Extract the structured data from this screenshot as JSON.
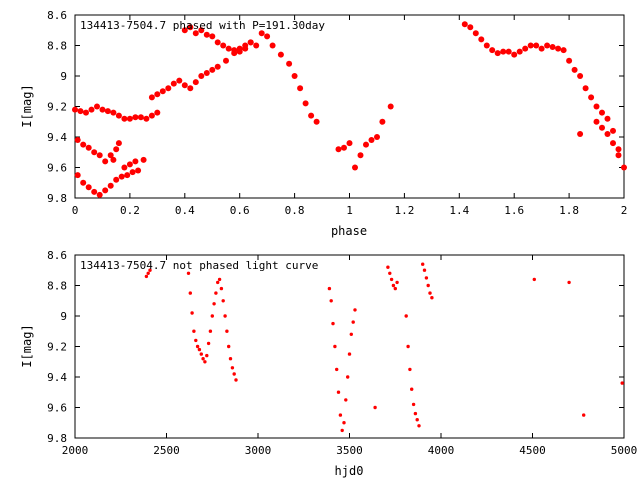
{
  "chart_data": [
    {
      "type": "scatter",
      "title": "134413-7504.7 phased with P=191.30day",
      "xlabel": "phase",
      "ylabel": "I[mag]",
      "xlim": [
        0,
        2
      ],
      "ylim": [
        9.8,
        8.6
      ],
      "y_inverted": true,
      "grid": false,
      "xticks": [
        "0",
        "0.2",
        "0.4",
        "0.6",
        "0.8",
        "1",
        "1.2",
        "1.4",
        "1.6",
        "1.8",
        "2"
      ],
      "yticks": [
        "8.6",
        "8.8",
        "9",
        "9.2",
        "9.4",
        "9.6",
        "9.8"
      ],
      "marker_color": "#ff0000",
      "marker_size": "large",
      "points": [
        [
          0.0,
          9.22
        ],
        [
          0.02,
          9.23
        ],
        [
          0.04,
          9.24
        ],
        [
          0.06,
          9.22
        ],
        [
          0.08,
          9.2
        ],
        [
          0.1,
          9.22
        ],
        [
          0.12,
          9.23
        ],
        [
          0.14,
          9.24
        ],
        [
          0.16,
          9.26
        ],
        [
          0.18,
          9.28
        ],
        [
          0.2,
          9.28
        ],
        [
          0.22,
          9.27
        ],
        [
          0.24,
          9.27
        ],
        [
          0.26,
          9.28
        ],
        [
          0.28,
          9.26
        ],
        [
          0.3,
          9.24
        ],
        [
          0.01,
          9.42
        ],
        [
          0.03,
          9.45
        ],
        [
          0.05,
          9.47
        ],
        [
          0.07,
          9.5
        ],
        [
          0.09,
          9.52
        ],
        [
          0.11,
          9.56
        ],
        [
          0.13,
          9.52
        ],
        [
          0.15,
          9.48
        ],
        [
          0.16,
          9.44
        ],
        [
          0.14,
          9.55
        ],
        [
          0.01,
          9.65
        ],
        [
          0.03,
          9.7
        ],
        [
          0.05,
          9.73
        ],
        [
          0.07,
          9.76
        ],
        [
          0.09,
          9.78
        ],
        [
          0.11,
          9.75
        ],
        [
          0.13,
          9.72
        ],
        [
          0.15,
          9.68
        ],
        [
          0.17,
          9.66
        ],
        [
          0.19,
          9.65
        ],
        [
          0.21,
          9.63
        ],
        [
          0.23,
          9.62
        ],
        [
          0.25,
          9.55
        ],
        [
          0.18,
          9.6
        ],
        [
          0.2,
          9.58
        ],
        [
          0.22,
          9.56
        ],
        [
          0.28,
          9.14
        ],
        [
          0.3,
          9.12
        ],
        [
          0.32,
          9.1
        ],
        [
          0.34,
          9.08
        ],
        [
          0.36,
          9.05
        ],
        [
          0.38,
          9.03
        ],
        [
          0.4,
          9.06
        ],
        [
          0.42,
          9.08
        ],
        [
          0.44,
          9.04
        ],
        [
          0.46,
          9.0
        ],
        [
          0.48,
          8.98
        ],
        [
          0.5,
          8.96
        ],
        [
          0.52,
          8.94
        ],
        [
          0.55,
          8.9
        ],
        [
          0.58,
          8.85
        ],
        [
          0.6,
          8.82
        ],
        [
          0.62,
          8.8
        ],
        [
          0.64,
          8.78
        ],
        [
          0.66,
          8.8
        ],
        [
          0.4,
          8.7
        ],
        [
          0.42,
          8.68
        ],
        [
          0.44,
          8.72
        ],
        [
          0.46,
          8.7
        ],
        [
          0.48,
          8.73
        ],
        [
          0.5,
          8.74
        ],
        [
          0.52,
          8.78
        ],
        [
          0.54,
          8.8
        ],
        [
          0.56,
          8.82
        ],
        [
          0.58,
          8.83
        ],
        [
          0.6,
          8.84
        ],
        [
          0.62,
          8.82
        ],
        [
          0.64,
          8.78
        ],
        [
          0.68,
          8.72
        ],
        [
          0.7,
          8.74
        ],
        [
          0.72,
          8.8
        ],
        [
          0.75,
          8.86
        ],
        [
          0.78,
          8.92
        ],
        [
          0.8,
          9.0
        ],
        [
          0.82,
          9.08
        ],
        [
          0.84,
          9.18
        ],
        [
          0.86,
          9.26
        ],
        [
          0.88,
          9.3
        ],
        [
          0.96,
          9.48
        ],
        [
          0.98,
          9.47
        ],
        [
          1.0,
          9.44
        ],
        [
          1.02,
          9.6
        ],
        [
          1.04,
          9.52
        ],
        [
          1.06,
          9.45
        ],
        [
          1.08,
          9.42
        ],
        [
          1.1,
          9.4
        ],
        [
          1.12,
          9.3
        ],
        [
          1.15,
          9.2
        ],
        [
          1.42,
          8.66
        ],
        [
          1.44,
          8.68
        ],
        [
          1.46,
          8.72
        ],
        [
          1.48,
          8.76
        ],
        [
          1.5,
          8.8
        ],
        [
          1.52,
          8.83
        ],
        [
          1.54,
          8.85
        ],
        [
          1.56,
          8.84
        ],
        [
          1.58,
          8.84
        ],
        [
          1.6,
          8.86
        ],
        [
          1.62,
          8.84
        ],
        [
          1.64,
          8.82
        ],
        [
          1.66,
          8.8
        ],
        [
          1.68,
          8.8
        ],
        [
          1.7,
          8.82
        ],
        [
          1.72,
          8.8
        ],
        [
          1.74,
          8.81
        ],
        [
          1.76,
          8.82
        ],
        [
          1.78,
          8.83
        ],
        [
          1.8,
          8.9
        ],
        [
          1.82,
          8.96
        ],
        [
          1.84,
          9.0
        ],
        [
          1.86,
          9.08
        ],
        [
          1.88,
          9.14
        ],
        [
          1.9,
          9.2
        ],
        [
          1.92,
          9.24
        ],
        [
          1.94,
          9.28
        ],
        [
          1.96,
          9.36
        ],
        [
          1.98,
          9.48
        ],
        [
          2.0,
          9.6
        ],
        [
          1.9,
          9.3
        ],
        [
          1.92,
          9.34
        ],
        [
          1.94,
          9.38
        ],
        [
          1.96,
          9.44
        ],
        [
          1.98,
          9.52
        ],
        [
          1.84,
          9.38
        ]
      ]
    },
    {
      "type": "scatter",
      "title": "134413-7504.7 not phased light curve",
      "xlabel": "hjd0",
      "ylabel": "I[mag]",
      "xlim": [
        2000,
        5000
      ],
      "ylim": [
        9.8,
        8.6
      ],
      "y_inverted": true,
      "grid": false,
      "xticks": [
        "2000",
        "2500",
        "3000",
        "3500",
        "4000",
        "4500",
        "5000"
      ],
      "yticks": [
        "8.6",
        "8.8",
        "9",
        "9.2",
        "9.4",
        "9.6",
        "9.8"
      ],
      "marker_color": "#ff0000",
      "marker_size": "small",
      "points": [
        [
          2390,
          8.74
        ],
        [
          2400,
          8.72
        ],
        [
          2410,
          8.7
        ],
        [
          2620,
          8.72
        ],
        [
          2630,
          8.85
        ],
        [
          2640,
          8.98
        ],
        [
          2650,
          9.1
        ],
        [
          2660,
          9.16
        ],
        [
          2670,
          9.2
        ],
        [
          2680,
          9.22
        ],
        [
          2690,
          9.25
        ],
        [
          2700,
          9.28
        ],
        [
          2710,
          9.3
        ],
        [
          2720,
          9.26
        ],
        [
          2730,
          9.18
        ],
        [
          2740,
          9.1
        ],
        [
          2750,
          9.0
        ],
        [
          2760,
          8.92
        ],
        [
          2770,
          8.85
        ],
        [
          2780,
          8.78
        ],
        [
          2790,
          8.76
        ],
        [
          2800,
          8.82
        ],
        [
          2810,
          8.9
        ],
        [
          2820,
          9.0
        ],
        [
          2830,
          9.1
        ],
        [
          2840,
          9.2
        ],
        [
          2850,
          9.28
        ],
        [
          2860,
          9.34
        ],
        [
          2870,
          9.38
        ],
        [
          2880,
          9.42
        ],
        [
          3390,
          8.82
        ],
        [
          3400,
          8.9
        ],
        [
          3410,
          9.05
        ],
        [
          3420,
          9.2
        ],
        [
          3430,
          9.35
        ],
        [
          3440,
          9.5
        ],
        [
          3450,
          9.65
        ],
        [
          3460,
          9.75
        ],
        [
          3470,
          9.7
        ],
        [
          3480,
          9.55
        ],
        [
          3490,
          9.4
        ],
        [
          3500,
          9.25
        ],
        [
          3510,
          9.12
        ],
        [
          3520,
          9.04
        ],
        [
          3530,
          8.96
        ],
        [
          3640,
          9.6
        ],
        [
          3710,
          8.68
        ],
        [
          3720,
          8.72
        ],
        [
          3730,
          8.76
        ],
        [
          3740,
          8.8
        ],
        [
          3750,
          8.82
        ],
        [
          3760,
          8.78
        ],
        [
          3810,
          9.0
        ],
        [
          3820,
          9.2
        ],
        [
          3830,
          9.35
        ],
        [
          3840,
          9.48
        ],
        [
          3850,
          9.58
        ],
        [
          3860,
          9.64
        ],
        [
          3870,
          9.68
        ],
        [
          3880,
          9.72
        ],
        [
          3900,
          8.66
        ],
        [
          3910,
          8.7
        ],
        [
          3920,
          8.75
        ],
        [
          3930,
          8.8
        ],
        [
          3940,
          8.85
        ],
        [
          3950,
          8.88
        ],
        [
          4510,
          8.76
        ],
        [
          4700,
          8.78
        ],
        [
          4780,
          9.65
        ],
        [
          4990,
          9.44
        ]
      ]
    }
  ]
}
